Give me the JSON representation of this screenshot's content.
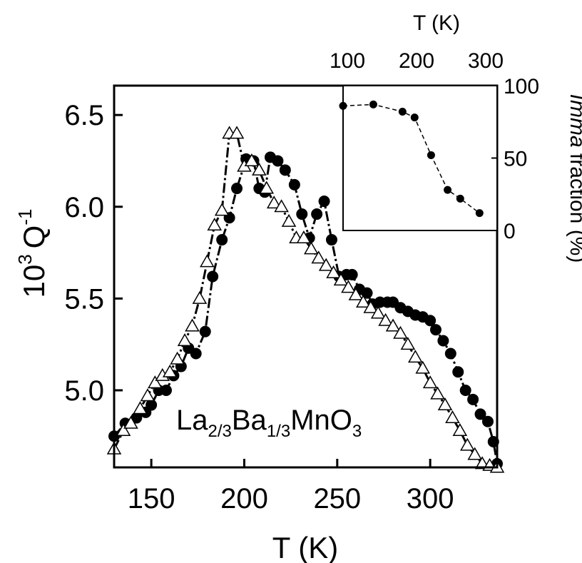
{
  "chart_data": [
    {
      "type": "line",
      "xlabel": "T (K)",
      "ylabel_main": "10",
      "ylabel_sup_exp": "3",
      "ylabel_unit": "Q",
      "ylabel_unit_exp": "-1",
      "xlim": [
        130,
        336
      ],
      "ylim": [
        4.58,
        6.66
      ],
      "xticks": [
        150,
        200,
        250,
        300
      ],
      "yticks": [
        5.0,
        5.5,
        6.0,
        6.5
      ],
      "xtick_labels": [
        "150",
        "200",
        "250",
        "300"
      ],
      "ytick_labels": [
        "5.0",
        "5.5",
        "6.0",
        "6.5"
      ],
      "grid": false,
      "legend": "none",
      "annotation": {
        "formula_parts": [
          {
            "text": "La",
            "sub": "2/3"
          },
          {
            "text": "Ba",
            "sub": "1/3"
          },
          {
            "text": "MnO",
            "sub": "3"
          }
        ]
      },
      "series": [
        {
          "marker": "filled-circle",
          "line": "dash-dot",
          "color": "#000000",
          "x": [
            130,
            136,
            142,
            147,
            150,
            154,
            158,
            162,
            166,
            170,
            174,
            179,
            183,
            188,
            192,
            196,
            201,
            205,
            208,
            211,
            214,
            218,
            222,
            227,
            231,
            235,
            239,
            243,
            247,
            251,
            255,
            258,
            262,
            266,
            269,
            273,
            277,
            280,
            284,
            288,
            292,
            296,
            300,
            303,
            307,
            311,
            315,
            319,
            323,
            327,
            331,
            334,
            336
          ],
          "y": [
            4.75,
            4.82,
            4.85,
            4.88,
            4.92,
            5.0,
            5.0,
            5.08,
            5.13,
            5.23,
            5.2,
            5.32,
            5.62,
            5.82,
            5.94,
            6.1,
            6.26,
            6.25,
            6.1,
            6.08,
            6.27,
            6.25,
            6.2,
            6.12,
            5.96,
            5.83,
            5.96,
            6.03,
            5.82,
            5.62,
            5.63,
            5.63,
            5.55,
            5.53,
            5.47,
            5.48,
            5.48,
            5.48,
            5.45,
            5.43,
            5.41,
            5.4,
            5.38,
            5.33,
            5.27,
            5.2,
            5.1,
            5.0,
            4.95,
            4.87,
            4.83,
            4.72,
            4.6
          ]
        },
        {
          "marker": "open-triangle",
          "line": "dash-dot",
          "color": "#000000",
          "x": [
            130,
            135,
            139,
            144,
            148,
            152,
            156,
            160,
            164,
            168,
            172,
            176,
            180,
            184,
            188,
            192,
            196,
            200,
            204,
            208,
            212,
            216,
            220,
            224,
            228,
            232,
            236,
            240,
            244,
            248,
            252,
            256,
            260,
            264,
            268,
            272,
            276,
            280,
            284,
            288,
            292,
            296,
            300,
            304,
            308,
            312,
            316,
            320,
            324,
            328,
            332,
            336
          ],
          "y": [
            4.68,
            4.78,
            4.82,
            4.9,
            4.97,
            5.04,
            5.08,
            5.1,
            5.17,
            5.27,
            5.35,
            5.5,
            5.7,
            5.9,
            5.98,
            6.4,
            6.4,
            6.22,
            6.25,
            6.2,
            6.1,
            6.02,
            6.0,
            5.92,
            5.83,
            5.83,
            5.77,
            5.72,
            5.68,
            5.64,
            5.6,
            5.56,
            5.52,
            5.48,
            5.45,
            5.42,
            5.38,
            5.35,
            5.31,
            5.25,
            5.18,
            5.12,
            5.04,
            4.98,
            4.92,
            4.85,
            4.78,
            4.7,
            4.65,
            4.6,
            4.59,
            4.58
          ]
        }
      ]
    },
    {
      "type": "line",
      "inset": true,
      "xlabel": "T (K)",
      "ylabel_italic": "Imma",
      "ylabel_rest": " fraction (%)",
      "xlim": [
        85,
        365
      ],
      "ylim": [
        0,
        100
      ],
      "xticks": [
        100,
        200,
        300
      ],
      "yticks": [
        0,
        50,
        100
      ],
      "xtick_labels": [
        "100",
        "200",
        "300"
      ],
      "ytick_labels": [
        "0",
        "50",
        "100"
      ],
      "grid": false,
      "legend": "none",
      "series": [
        {
          "marker": "filled-circle",
          "line": "dashed",
          "color": "#000000",
          "x": [
            85,
            140,
            193,
            215,
            245,
            275,
            298,
            333
          ],
          "y": [
            86,
            87,
            82,
            78,
            52,
            28,
            22,
            12
          ]
        }
      ]
    }
  ]
}
